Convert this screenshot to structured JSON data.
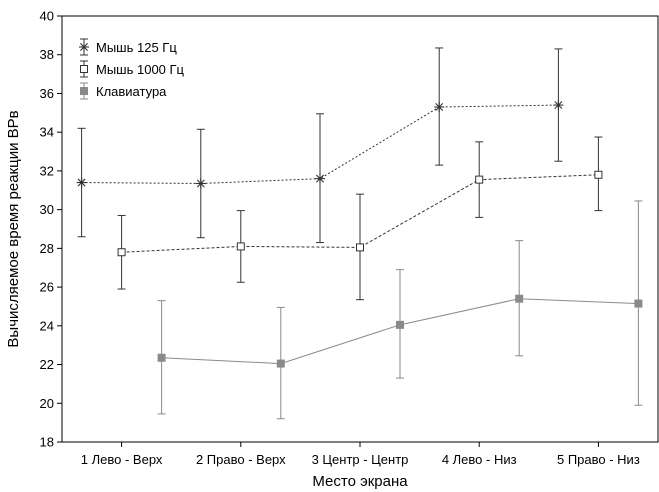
{
  "chart_data": {
    "type": "line",
    "xlabel": "Место экрана",
    "ylabel": "Вычисляемое время реакции ВРв",
    "categories": [
      "1 Лево - Верх",
      "2 Право - Верх",
      "3 Центр - Центр",
      "4 Лево - Низ",
      "5 Право - Низ"
    ],
    "ylim": [
      18,
      40
    ],
    "yticks": [
      18,
      20,
      22,
      24,
      26,
      28,
      30,
      32,
      34,
      36,
      38,
      40
    ],
    "legend_position": "top-left",
    "grid": false,
    "series": [
      {
        "name": "Мышь 125 Гц",
        "marker": "asterisk",
        "line_style": "dotted",
        "color": "#333333",
        "values": [
          31.4,
          31.35,
          31.6,
          35.3,
          35.4
        ],
        "err_low": [
          28.6,
          28.55,
          28.3,
          32.3,
          32.5
        ],
        "err_high": [
          34.2,
          34.15,
          34.95,
          38.35,
          38.3
        ]
      },
      {
        "name": "Мышь 1000 Гц",
        "marker": "open-square",
        "line_style": "dashed",
        "color": "#333333",
        "values": [
          27.8,
          28.1,
          28.05,
          31.55,
          31.8
        ],
        "err_low": [
          25.9,
          26.25,
          25.35,
          29.6,
          29.95
        ],
        "err_high": [
          29.7,
          29.95,
          30.8,
          33.5,
          33.75
        ]
      },
      {
        "name": "Клавиатура",
        "marker": "filled-square",
        "line_style": "solid",
        "color": "#8a8a8a",
        "values": [
          22.35,
          22.05,
          24.05,
          25.4,
          25.15
        ],
        "err_low": [
          19.45,
          19.2,
          21.3,
          22.45,
          19.9
        ],
        "err_high": [
          25.3,
          24.95,
          26.9,
          28.4,
          30.45
        ]
      }
    ]
  }
}
